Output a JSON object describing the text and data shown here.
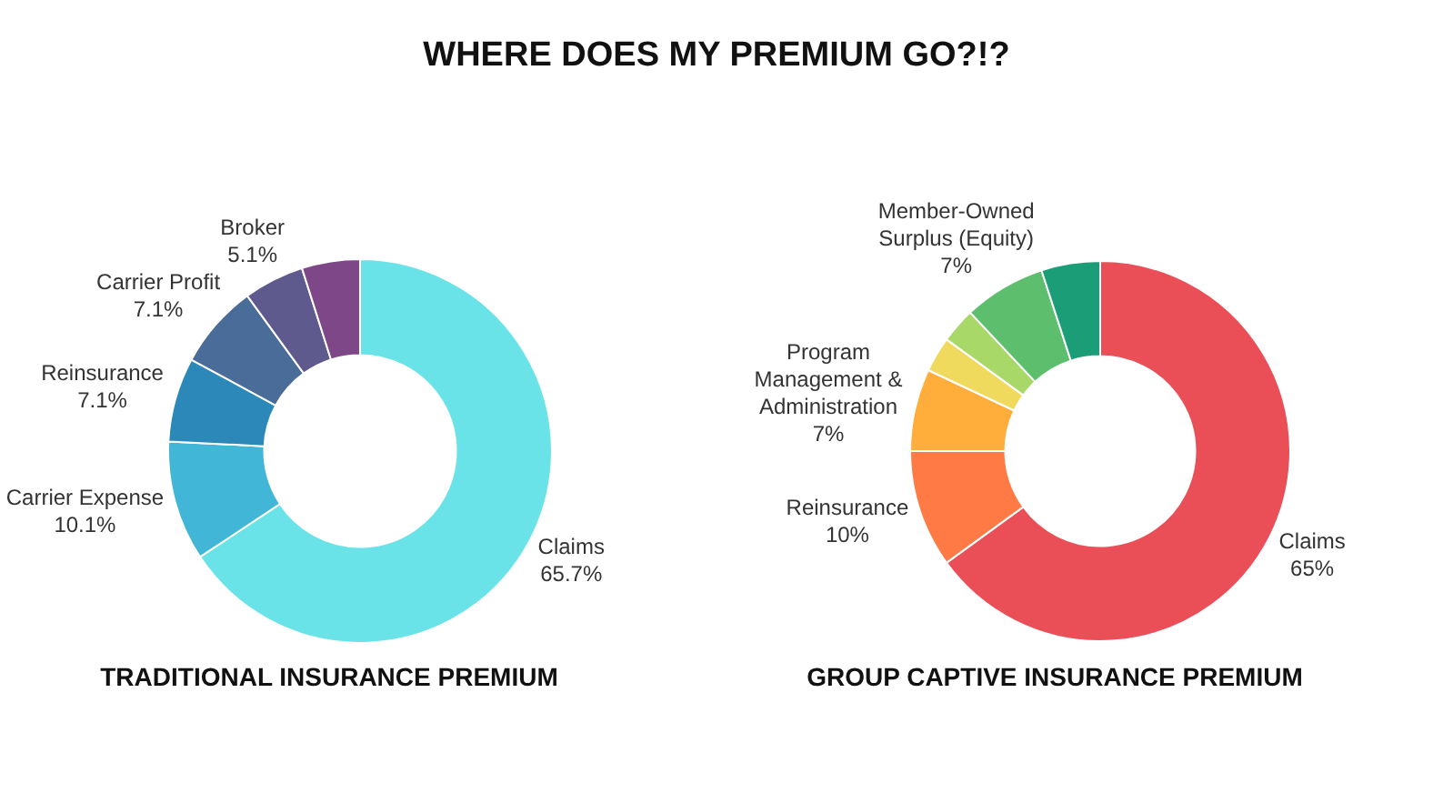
{
  "chart_data": [
    {
      "type": "other",
      "title": "WHERE DOES MY PREMIUM GO?!?"
    },
    {
      "type": "donut",
      "title": "TRADITIONAL INSURANCE PREMIUM",
      "categories": [
        "Claims",
        "Carrier Expense",
        "Reinsurance",
        "Carrier Profit",
        "Broker",
        null
      ],
      "values": [
        65.7,
        10.1,
        7.1,
        7.1,
        5.1,
        4.9
      ],
      "colors": [
        "#6ae3e8",
        "#42b6d6",
        "#2b88b8",
        "#4a6c98",
        "#5f5a8e",
        "#7e4888"
      ],
      "value_labels": [
        "65.7%",
        "10.1%",
        "7.1%",
        "7.1%",
        "5.1%",
        null
      ]
    },
    {
      "type": "donut",
      "title": "GROUP CAPTIVE INSURANCE PREMIUM",
      "categories": [
        "Claims",
        "Reinsurance",
        "Program Management & Administration",
        null,
        null,
        "Member-Owned Surplus (Equity)",
        null
      ],
      "values": [
        65,
        10,
        7,
        3,
        3,
        7,
        5
      ],
      "colors": [
        "#ea4f58",
        "#ff7a45",
        "#ffae3c",
        "#f0da5e",
        "#a8d868",
        "#5dbf6e",
        "#1b9e78"
      ],
      "value_labels": [
        "65%",
        "10%",
        "7%",
        null,
        null,
        "7%",
        null
      ]
    }
  ]
}
